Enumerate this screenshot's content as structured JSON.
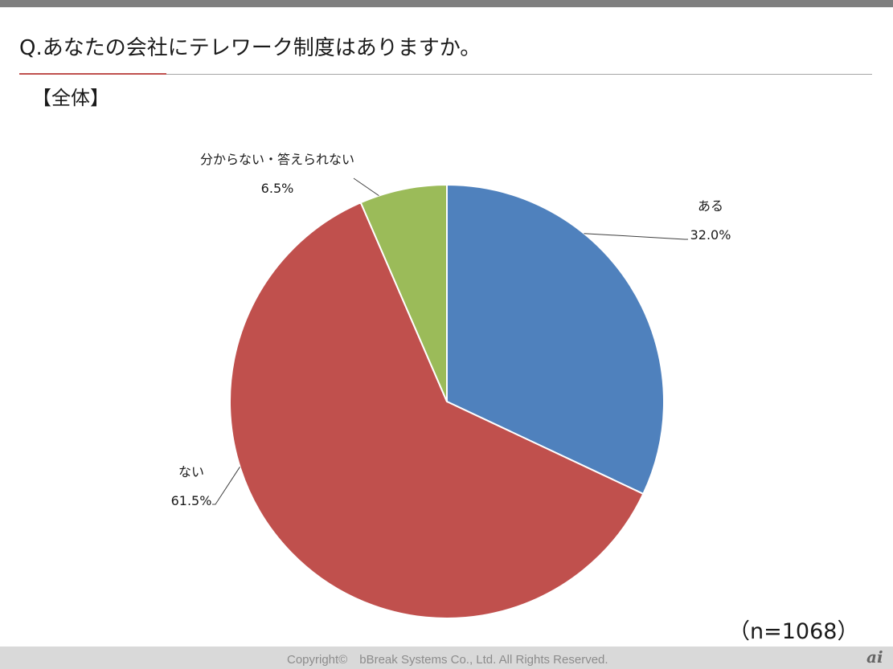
{
  "question": "Q.あなたの会社にテレワーク制度はありますか。",
  "segment": "【全体】",
  "sample_size": "（n=1068）",
  "footer": {
    "copyright": "Copyright©　bBreak Systems Co., Ltd.  All Rights Reserved.",
    "logo": "ai"
  },
  "chart_data": {
    "type": "pie",
    "title": "",
    "slices": [
      {
        "label": "ある",
        "value": 32.0,
        "value_label": "32.0%",
        "color": "#4f81bd"
      },
      {
        "label": "ない",
        "value": 61.5,
        "value_label": "61.5%",
        "color": "#c0504d"
      },
      {
        "label": "分からない・答えられない",
        "value": 6.5,
        "value_label": "6.5%",
        "color": "#9bbb59"
      }
    ],
    "start": "12 o'clock",
    "direction": "clockwise",
    "legend": "none",
    "data_labels": "outside with leader lines"
  }
}
